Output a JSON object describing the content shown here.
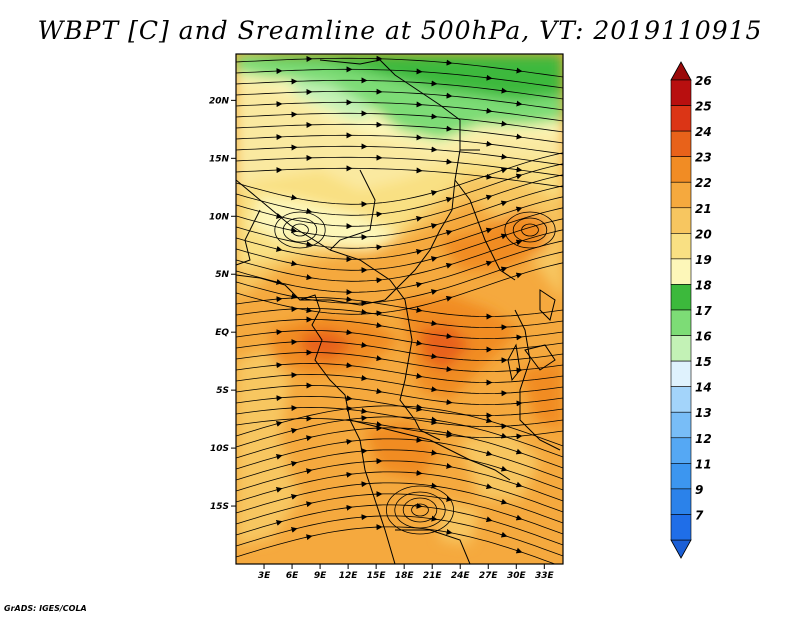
{
  "title": "WBPT [C] and Sreamline at 500hPa, VT: 2019110915",
  "footer": "GrADS: IGES/COLA",
  "variable": "Wet-bulb potential temperature",
  "units": "C",
  "level": "500hPa",
  "map": {
    "lon_range": [
      0,
      35
    ],
    "lat_range": [
      -20,
      24
    ],
    "lat_ticks": [
      {
        "value": 20,
        "label": "20N"
      },
      {
        "value": 15,
        "label": "15N"
      },
      {
        "value": 10,
        "label": "10N"
      },
      {
        "value": 5,
        "label": "5N"
      },
      {
        "value": 0,
        "label": "EQ"
      },
      {
        "value": -5,
        "label": "5S"
      },
      {
        "value": -10,
        "label": "10S"
      },
      {
        "value": -15,
        "label": "15S"
      }
    ],
    "lon_ticks": [
      {
        "value": 3,
        "label": "3E"
      },
      {
        "value": 6,
        "label": "6E"
      },
      {
        "value": 9,
        "label": "9E"
      },
      {
        "value": 12,
        "label": "12E"
      },
      {
        "value": 15,
        "label": "15E"
      },
      {
        "value": 18,
        "label": "18E"
      },
      {
        "value": 21,
        "label": "21E"
      },
      {
        "value": 24,
        "label": "24E"
      },
      {
        "value": 27,
        "label": "27E"
      },
      {
        "value": 30,
        "label": "30E"
      },
      {
        "value": 33,
        "label": "33E"
      }
    ]
  },
  "colorbar": {
    "levels": [
      {
        "label": "7",
        "color": "#1f6ee8"
      },
      {
        "label": "9",
        "color": "#2b82ea"
      },
      {
        "label": "11",
        "color": "#3c96f0"
      },
      {
        "label": "12",
        "color": "#55a8f4"
      },
      {
        "label": "13",
        "color": "#78bdf7"
      },
      {
        "label": "14",
        "color": "#a3d4fa"
      },
      {
        "label": "15",
        "color": "#dff2fd"
      },
      {
        "label": "16",
        "color": "#c3f2b6"
      },
      {
        "label": "17",
        "color": "#7ddc76"
      },
      {
        "label": "18",
        "color": "#3cb93c"
      },
      {
        "label": "19",
        "color": "#fdf7b9"
      },
      {
        "label": "20",
        "color": "#f9e083"
      },
      {
        "label": "21",
        "color": "#f7c660"
      },
      {
        "label": "22",
        "color": "#f5a93e"
      },
      {
        "label": "23",
        "color": "#f18c24"
      },
      {
        "label": "24",
        "color": "#e8621a"
      },
      {
        "label": "25",
        "color": "#db3516"
      },
      {
        "label": "26",
        "color": "#b80f0f"
      }
    ],
    "below_color": "#1b5fd6",
    "above_color": "#9a0a0a"
  }
}
